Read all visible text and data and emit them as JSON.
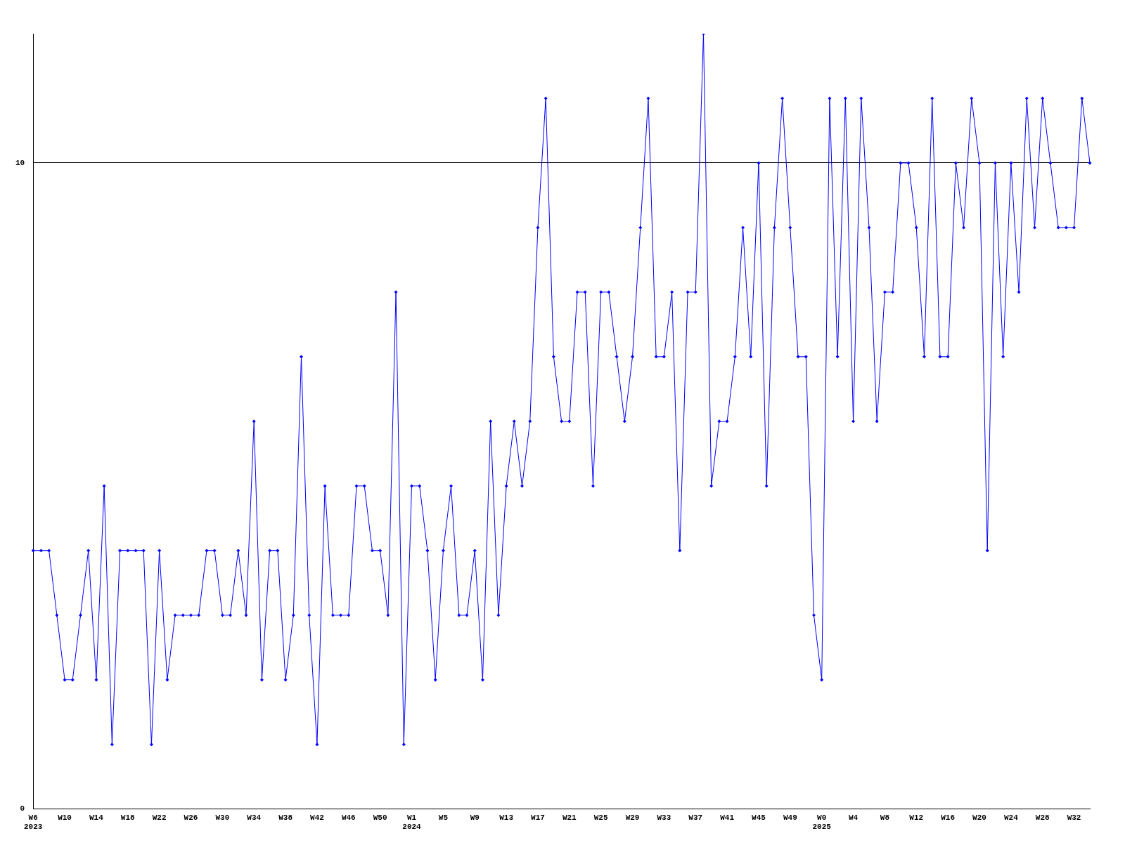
{
  "chart_data": {
    "type": "line",
    "categories": [
      "W6\n2023",
      null,
      null,
      null,
      "W10",
      null,
      null,
      null,
      "W14",
      null,
      null,
      null,
      "W18",
      null,
      null,
      null,
      "W22",
      null,
      null,
      null,
      "W26",
      null,
      null,
      null,
      "W30",
      null,
      null,
      null,
      "W34",
      null,
      null,
      null,
      "W38",
      null,
      null,
      null,
      "W42",
      null,
      null,
      null,
      "W46",
      null,
      null,
      null,
      "W50",
      null,
      null,
      null,
      "W1\n2024",
      null,
      null,
      null,
      "W5",
      null,
      null,
      null,
      "W9",
      null,
      null,
      null,
      "W13",
      null,
      null,
      null,
      "W17",
      null,
      null,
      null,
      "W21",
      null,
      null,
      null,
      "W25",
      null,
      null,
      null,
      "W29",
      null,
      null,
      null,
      "W33",
      null,
      null,
      null,
      "W37",
      null,
      null,
      null,
      "W41",
      null,
      null,
      null,
      "W45",
      null,
      null,
      null,
      "W49",
      null,
      null,
      null,
      "W0\n2025",
      null,
      null,
      null,
      "W4",
      null,
      null,
      null,
      "W8",
      null,
      null,
      null,
      "W12",
      null,
      null,
      null,
      "W16",
      null,
      null,
      null,
      "W20",
      null,
      null,
      null,
      "W24",
      null,
      null,
      null,
      "W28",
      null,
      null,
      null,
      "W32",
      null,
      null
    ],
    "series": [
      {
        "color": "#0000ff",
        "values": [
          4,
          4,
          4,
          3,
          2,
          2,
          3,
          4,
          2,
          5,
          1,
          4,
          4,
          4,
          4,
          1,
          4,
          2,
          3,
          3,
          3,
          3,
          4,
          4,
          3,
          3,
          4,
          3,
          6,
          2,
          4,
          4,
          2,
          3,
          7,
          3,
          1,
          5,
          3,
          3,
          3,
          5,
          5,
          4,
          4,
          3,
          8,
          1,
          5,
          5,
          4,
          2,
          4,
          5,
          3,
          3,
          4,
          2,
          6,
          3,
          5,
          6,
          5,
          6,
          9,
          11,
          7,
          6,
          6,
          8,
          8,
          5,
          8,
          8,
          7,
          6,
          7,
          9,
          11,
          7,
          7,
          8,
          4,
          8,
          8,
          12,
          5,
          6,
          6,
          7,
          9,
          7,
          10,
          5,
          9,
          11,
          9,
          7,
          7,
          3,
          2,
          11,
          7,
          11,
          6,
          11,
          9,
          6,
          8,
          8,
          10,
          10,
          9,
          7,
          11,
          7,
          7,
          10,
          9,
          11,
          10,
          4,
          10,
          7,
          10,
          8,
          11,
          9,
          11,
          10,
          9,
          9,
          9,
          11,
          10
        ]
      }
    ],
    "ylim": [
      0,
      12
    ],
    "yticks": [
      0,
      10
    ],
    "grid": "y",
    "marker": "diamond",
    "line_style": "solid"
  }
}
